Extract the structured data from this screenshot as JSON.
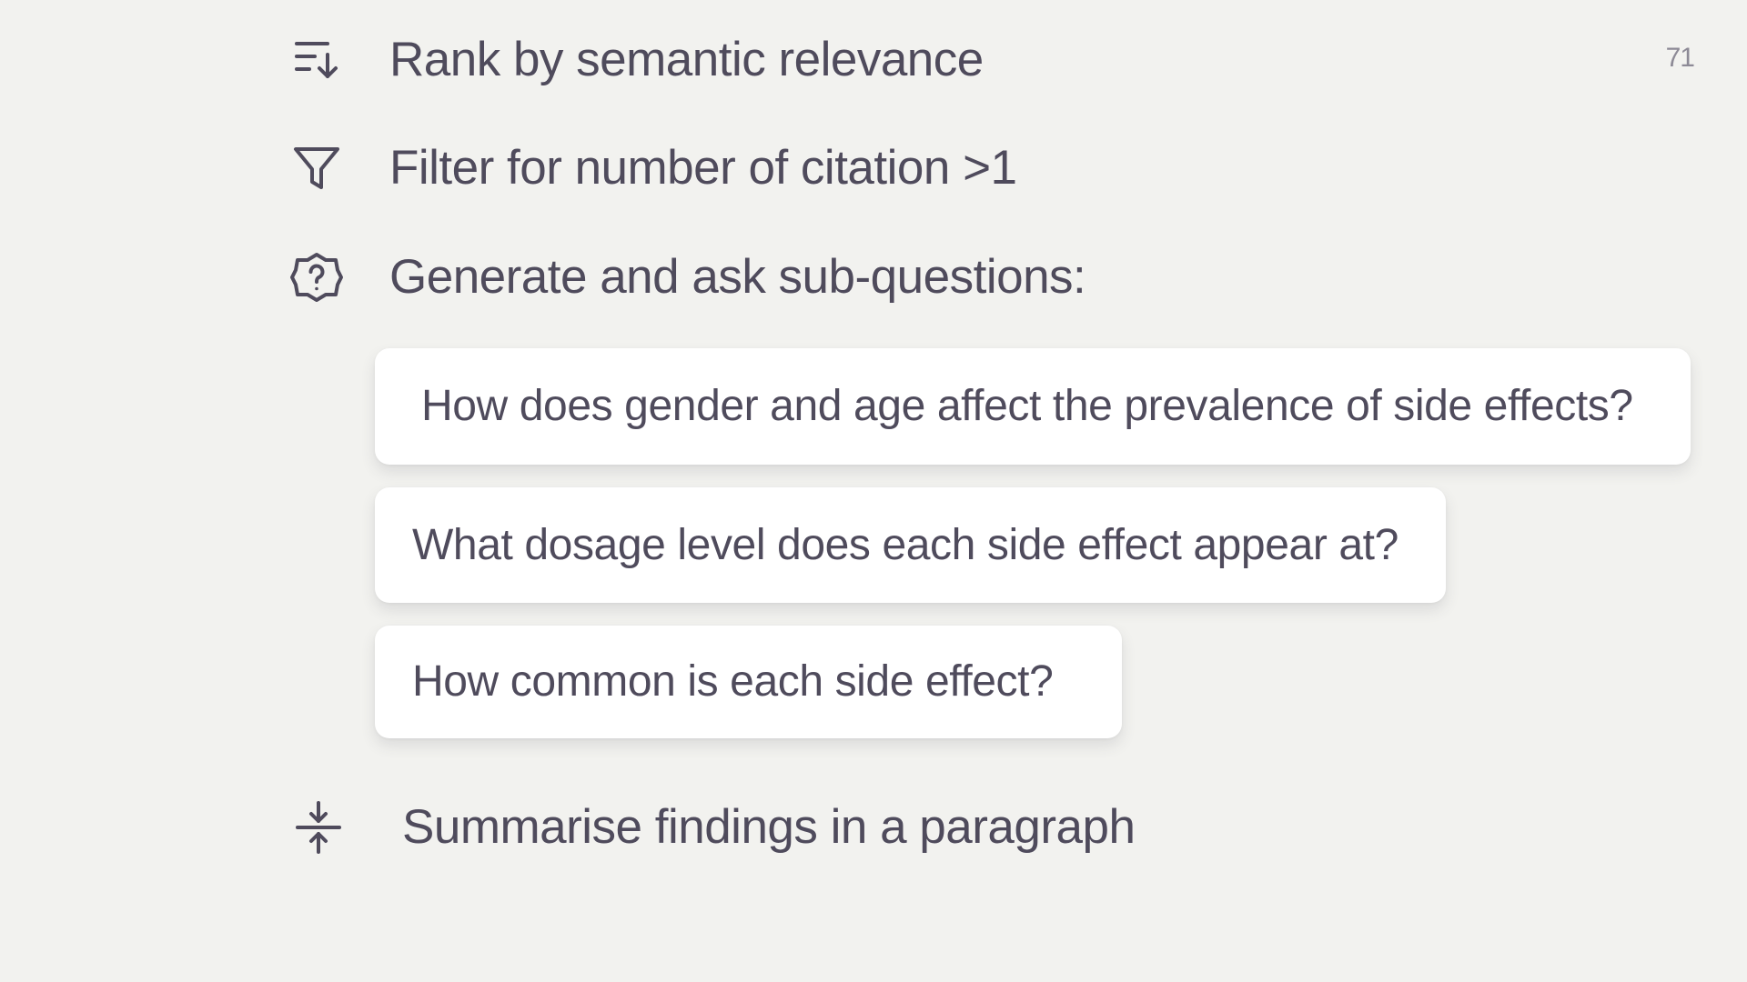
{
  "page_number": "71",
  "steps": [
    {
      "icon": "sort-descending-icon",
      "label": "Rank by semantic relevance"
    },
    {
      "icon": "filter-icon",
      "label": "Filter for number of citation >1"
    },
    {
      "icon": "help-badge-icon",
      "label": "Generate and ask sub-questions:"
    },
    {
      "icon": "compress-vertical-icon",
      "label": "Summarise findings in a paragraph"
    }
  ],
  "sub_questions": [
    "How does gender and age affect the prevalence of side effects?",
    "What dosage level does each side effect appear at?",
    "How common is each side effect?"
  ],
  "colors": {
    "background": "#f2f2ef",
    "text": "#4f4b5c",
    "card": "#ffffff",
    "muted": "#8d8a96"
  }
}
